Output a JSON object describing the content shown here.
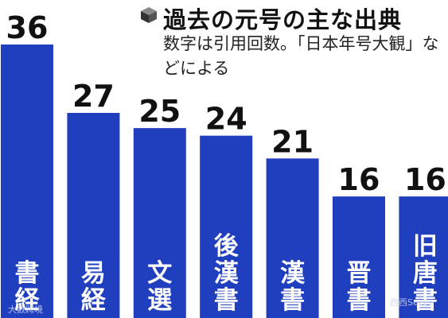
{
  "chart_data": {
    "type": "bar",
    "title": "過去の元号の主な出典",
    "subtitle": "数字は引用回数。「日本年号大観」などによる",
    "categories": [
      "書経",
      "易経",
      "文選",
      "後漢書",
      "漢書",
      "晋書",
      "旧唐書"
    ],
    "values": [
      36,
      27,
      25,
      24,
      21,
      16,
      16
    ],
    "ylim": [
      0,
      36
    ],
    "bar_color": "#1f3fbf",
    "grid": false,
    "legend": "none"
  },
  "watermarks": {
    "left": "大数跨境",
    "right": "西西Sezze"
  }
}
